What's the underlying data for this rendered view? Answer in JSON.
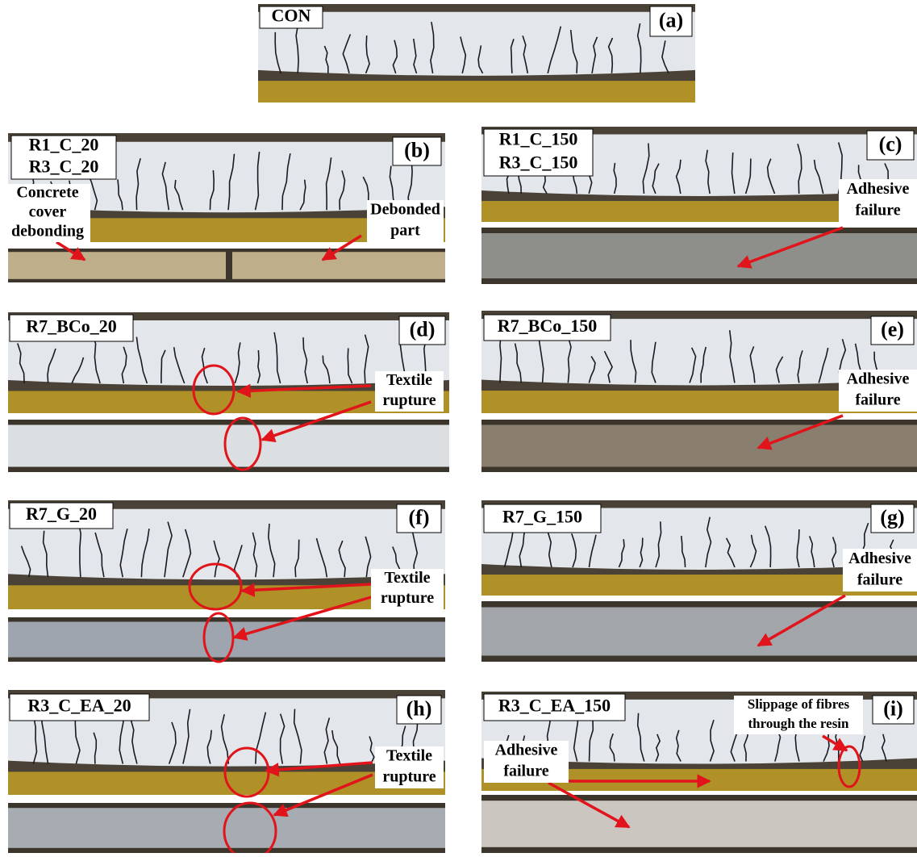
{
  "panels": [
    {
      "label": "(a)",
      "specimens": [
        "CON"
      ],
      "annotations": []
    },
    {
      "label": "(b)",
      "specimens": [
        "R1_C_20",
        "R3_C_20"
      ],
      "annotations": [
        {
          "lines": [
            "Concrete",
            "cover",
            "debonding"
          ]
        },
        {
          "lines": [
            "Debonded",
            "part"
          ]
        }
      ]
    },
    {
      "label": "(c)",
      "specimens": [
        "R1_C_150",
        "R3_C_150"
      ],
      "annotations": [
        {
          "lines": [
            "Adhesive",
            "failure"
          ]
        }
      ]
    },
    {
      "label": "(d)",
      "specimens": [
        "R7_BCo_20"
      ],
      "annotations": [
        {
          "lines": [
            "Textile",
            "rupture"
          ]
        }
      ]
    },
    {
      "label": "(e)",
      "specimens": [
        "R7_BCo_150"
      ],
      "annotations": [
        {
          "lines": [
            "Adhesive",
            "failure"
          ]
        }
      ]
    },
    {
      "label": "(f)",
      "specimens": [
        "R7_G_20"
      ],
      "annotations": [
        {
          "lines": [
            "Textile",
            "rupture"
          ]
        }
      ]
    },
    {
      "label": "(g)",
      "specimens": [
        "R7_G_150"
      ],
      "annotations": [
        {
          "lines": [
            "Adhesive",
            "failure"
          ]
        }
      ]
    },
    {
      "label": "(h)",
      "specimens": [
        "R3_C_EA_20"
      ],
      "annotations": [
        {
          "lines": [
            "Textile",
            "rupture"
          ]
        }
      ]
    },
    {
      "label": "(i)",
      "specimens": [
        "R3_C_EA_150"
      ],
      "annotations": [
        {
          "lines": [
            "Slippage of fibres",
            "through the resin"
          ]
        },
        {
          "lines": [
            "Adhesive",
            "failure"
          ]
        }
      ]
    }
  ]
}
